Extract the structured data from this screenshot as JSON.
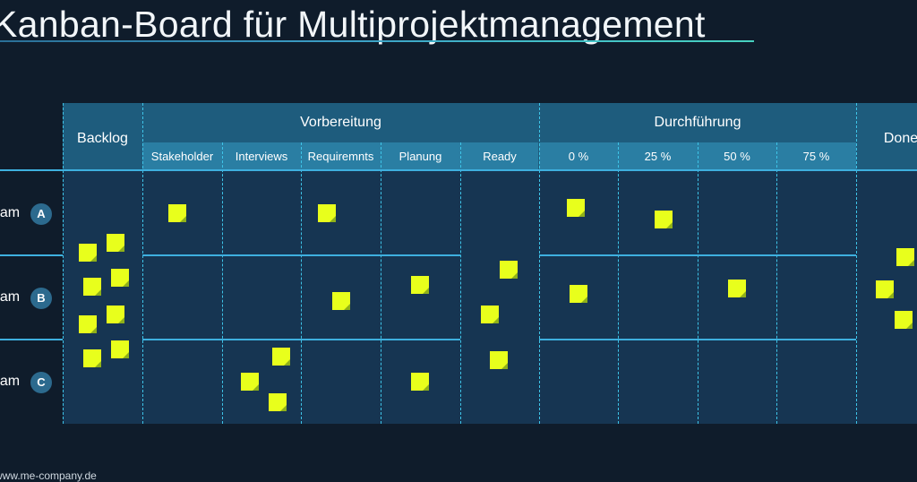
{
  "title": "Kanban-Board für Multiprojektmanagement",
  "footer": "www.me-company.de",
  "phases": {
    "backlog": "Backlog",
    "vorbereitung": "Vorbereitung",
    "durchfuehrung": "Durchführung",
    "done": "Done"
  },
  "subcolumns": {
    "vorbereitung": [
      "Stakeholder",
      "Interviews",
      "Requiremnts",
      "Planung",
      "Ready"
    ],
    "durchfuehrung": [
      "0 %",
      "25 %",
      "50 %",
      "75 %"
    ]
  },
  "teams": [
    {
      "label": "Team",
      "badge": "A"
    },
    {
      "label": "Team",
      "badge": "B"
    },
    {
      "label": "Team",
      "badge": "C"
    }
  ],
  "colors": {
    "background": "#0f1c2b",
    "header": "#1e5c7d",
    "subheader": "#2a7ea3",
    "board_body": "#163552",
    "divider": "#3ec4e8",
    "sticky_note": "#e8ff1c"
  }
}
